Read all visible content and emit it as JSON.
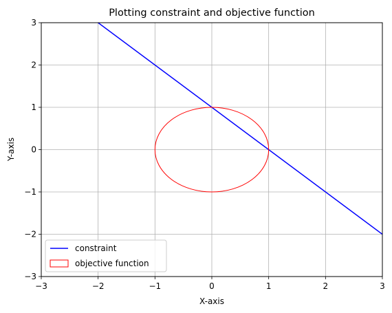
{
  "chart_data": {
    "type": "line",
    "title": "Plotting constraint and objective function",
    "xlabel": "X-axis",
    "ylabel": "Y-axis",
    "xlim": [
      -3,
      3
    ],
    "ylim": [
      -3,
      3
    ],
    "xticks": [
      -3,
      -2,
      -1,
      0,
      1,
      2,
      3
    ],
    "yticks": [
      -3,
      -2,
      -1,
      0,
      1,
      2,
      3
    ],
    "xtick_labels": [
      "−3",
      "−2",
      "−1",
      "0",
      "1",
      "2",
      "3"
    ],
    "ytick_labels": [
      "−3",
      "−2",
      "−1",
      "0",
      "1",
      "2",
      "3"
    ],
    "grid": true,
    "legend_position": "lower-left",
    "series": [
      {
        "name": "constraint",
        "kind": "line",
        "color": "#0000ff",
        "x": [
          -3,
          3
        ],
        "y": [
          4,
          -2
        ]
      },
      {
        "name": "objective function",
        "kind": "circle",
        "color": "#ff0000",
        "center": [
          0,
          0
        ],
        "radius": 1
      }
    ]
  }
}
